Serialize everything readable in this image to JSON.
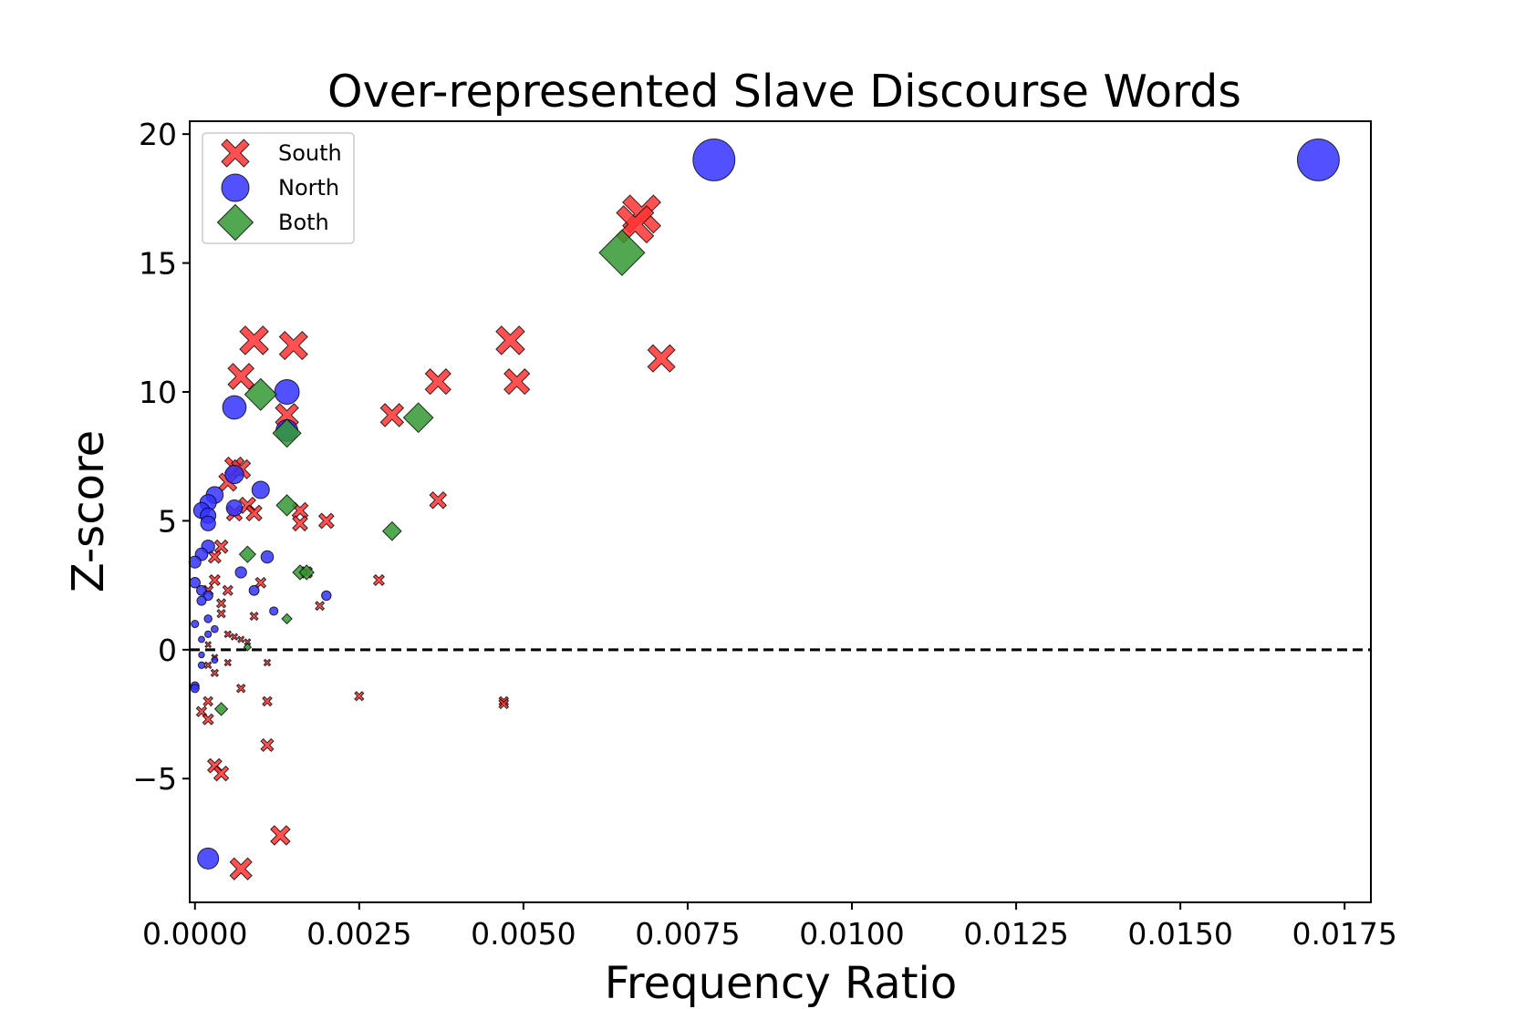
{
  "chart_data": {
    "type": "scatter",
    "title": "Over-represented Slave Discourse Words",
    "xlabel": "Frequency Ratio",
    "ylabel": "Z-score",
    "xlim": [
      -8e-05,
      0.0179
    ],
    "ylim": [
      -9.8,
      20.5
    ],
    "xticks": [
      0.0,
      0.0025,
      0.005,
      0.0075,
      0.01,
      0.0125,
      0.015,
      0.0175
    ],
    "xtick_labels": [
      "0.0000",
      "0.0025",
      "0.0050",
      "0.0075",
      "0.0100",
      "0.0125",
      "0.0150",
      "0.0175"
    ],
    "yticks": [
      -5,
      0,
      5,
      10,
      15,
      20
    ],
    "ytick_labels": [
      "−5",
      "0",
      "5",
      "10",
      "15",
      "20"
    ],
    "reference_line": {
      "y": 0,
      "style": "dashed",
      "color": "#000000"
    },
    "grid": false,
    "legend_position": "top-left",
    "marker_size_encodes": "absolute Z-score",
    "series": [
      {
        "name": "South",
        "marker": "x",
        "color": "#ff3333",
        "points": [
          [
            0.0068,
            16.9
          ],
          [
            0.0067,
            16.5
          ],
          [
            0.0007,
            10.6
          ],
          [
            0.0009,
            12.0
          ],
          [
            0.0015,
            11.8
          ],
          [
            0.0048,
            12.0
          ],
          [
            0.0049,
            10.4
          ],
          [
            0.0037,
            10.4
          ],
          [
            0.0071,
            11.3
          ],
          [
            0.003,
            9.1
          ],
          [
            0.0014,
            9.1
          ],
          [
            0.0006,
            7.1
          ],
          [
            0.0007,
            7.0
          ],
          [
            0.0005,
            6.5
          ],
          [
            0.0008,
            5.6
          ],
          [
            0.0006,
            5.3
          ],
          [
            0.0009,
            5.3
          ],
          [
            0.0016,
            5.4
          ],
          [
            0.0016,
            4.9
          ],
          [
            0.002,
            5.0
          ],
          [
            0.0037,
            5.8
          ],
          [
            0.0004,
            4.0
          ],
          [
            0.0003,
            3.6
          ],
          [
            0.0017,
            3.0
          ],
          [
            0.0028,
            2.7
          ],
          [
            0.001,
            2.6
          ],
          [
            0.0003,
            2.7
          ],
          [
            0.0002,
            2.3
          ],
          [
            0.0005,
            2.3
          ],
          [
            0.0004,
            1.8
          ],
          [
            0.0019,
            1.7
          ],
          [
            0.0004,
            1.4
          ],
          [
            0.0009,
            1.3
          ],
          [
            0.0005,
            0.6
          ],
          [
            0.0006,
            0.5
          ],
          [
            0.0002,
            0.2
          ],
          [
            0.0007,
            0.4
          ],
          [
            0.0008,
            0.3
          ],
          [
            0.0003,
            -0.3
          ],
          [
            0.0005,
            -0.5
          ],
          [
            0.0011,
            -0.5
          ],
          [
            0.0002,
            -0.6
          ],
          [
            0.0003,
            -0.9
          ],
          [
            0.0007,
            -1.5
          ],
          [
            0.0025,
            -1.8
          ],
          [
            0.0011,
            -2.0
          ],
          [
            0.0047,
            -2.0
          ],
          [
            0.0047,
            -2.1
          ],
          [
            0.0002,
            -2.0
          ],
          [
            0.0001,
            -2.4
          ],
          [
            0.0002,
            -2.7
          ],
          [
            0.0011,
            -3.7
          ],
          [
            0.0003,
            -4.5
          ],
          [
            0.0004,
            -4.8
          ],
          [
            0.0013,
            -7.2
          ],
          [
            0.0007,
            -8.5
          ]
        ]
      },
      {
        "name": "North",
        "marker": "o",
        "color": "#3333ff",
        "points": [
          [
            0.0079,
            19.0
          ],
          [
            0.0171,
            19.0
          ],
          [
            0.0014,
            10.0
          ],
          [
            0.0006,
            9.4
          ],
          [
            0.0014,
            8.5
          ],
          [
            0.0006,
            6.8
          ],
          [
            0.001,
            6.2
          ],
          [
            0.0003,
            6.0
          ],
          [
            0.0002,
            5.7
          ],
          [
            0.0001,
            5.4
          ],
          [
            0.0006,
            5.5
          ],
          [
            0.0002,
            5.2
          ],
          [
            0.0002,
            4.9
          ],
          [
            0.0002,
            4.0
          ],
          [
            0.0001,
            3.7
          ],
          [
            0.0,
            3.4
          ],
          [
            0.0011,
            3.6
          ],
          [
            0.0007,
            3.0
          ],
          [
            0.0,
            2.6
          ],
          [
            0.0001,
            2.3
          ],
          [
            0.0002,
            2.1
          ],
          [
            0.0001,
            1.9
          ],
          [
            0.0009,
            2.3
          ],
          [
            0.002,
            2.1
          ],
          [
            0.0012,
            1.5
          ],
          [
            0.0,
            1.0
          ],
          [
            0.0002,
            1.2
          ],
          [
            0.0003,
            0.8
          ],
          [
            0.0001,
            0.4
          ],
          [
            0.0002,
            0.6
          ],
          [
            0.0001,
            -0.2
          ],
          [
            0.0003,
            -0.4
          ],
          [
            0.0001,
            -0.6
          ],
          [
            0.0,
            -1.4
          ],
          [
            0.0,
            -1.5
          ],
          [
            0.0002,
            -8.1
          ]
        ]
      },
      {
        "name": "Both",
        "marker": "D",
        "color": "#339933",
        "points": [
          [
            0.0065,
            15.4
          ],
          [
            0.001,
            9.9
          ],
          [
            0.0034,
            9.0
          ],
          [
            0.0014,
            8.4
          ],
          [
            0.0014,
            5.6
          ],
          [
            0.003,
            4.6
          ],
          [
            0.0008,
            3.7
          ],
          [
            0.0016,
            3.0
          ],
          [
            0.0017,
            3.0
          ],
          [
            0.0014,
            1.2
          ],
          [
            0.0008,
            0.1
          ],
          [
            0.0004,
            -2.3
          ]
        ]
      }
    ]
  }
}
